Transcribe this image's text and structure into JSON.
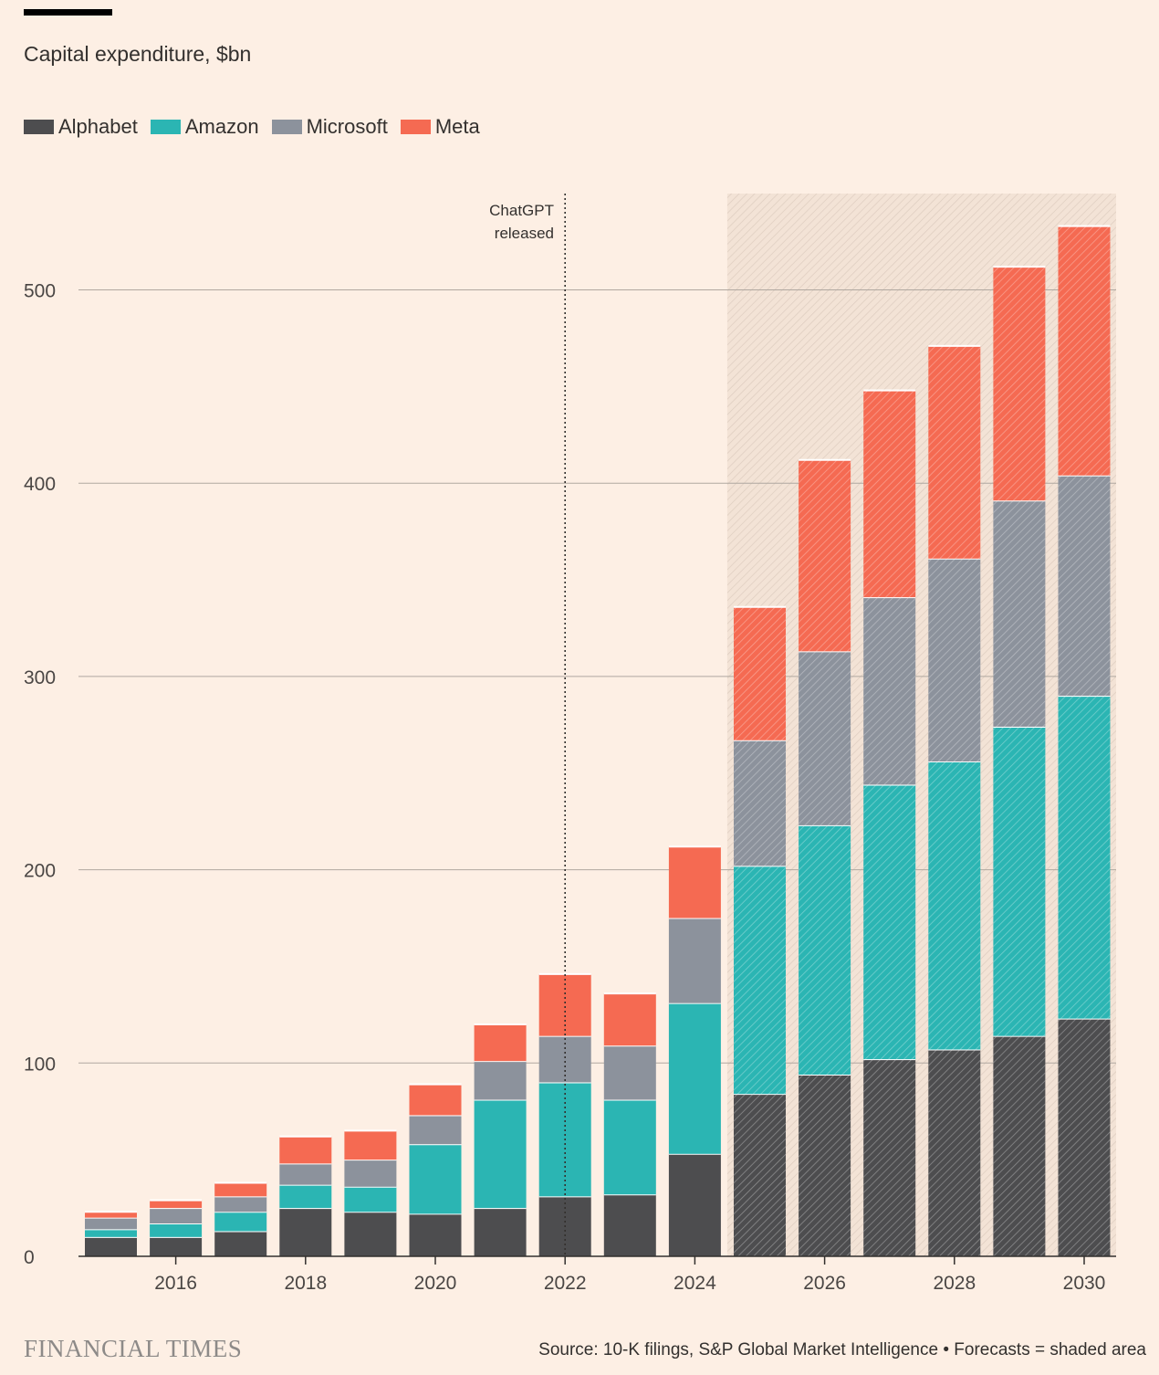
{
  "subtitle": "Capital expenditure, $bn",
  "brand": "FINANCIAL TIMES",
  "source": "Source: 10-K filings, S&P Global Market Intelligence • Forecasts = shaded area",
  "annotation": {
    "line1": "ChatGPT",
    "line2": "released"
  },
  "legend": [
    {
      "name": "Alphabet",
      "color": "#4d4d4f"
    },
    {
      "name": "Amazon",
      "color": "#2bb5b3"
    },
    {
      "name": "Microsoft",
      "color": "#8c929c"
    },
    {
      "name": "Meta",
      "color": "#f56a52"
    }
  ],
  "chart_data": {
    "type": "bar",
    "stacked": true,
    "title": "",
    "ylabel": "",
    "ylim": [
      0,
      550
    ],
    "yticks": [
      0,
      100,
      200,
      300,
      400,
      500
    ],
    "xtick_labels": [
      "2016",
      "2018",
      "2020",
      "2022",
      "2024",
      "2026",
      "2028",
      "2030"
    ],
    "categories": [
      "2015",
      "2016",
      "2017",
      "2018",
      "2019",
      "2020",
      "2021",
      "2022",
      "2023",
      "2024",
      "2025",
      "2026",
      "2027",
      "2028",
      "2029",
      "2030"
    ],
    "forecast_from": "2025",
    "annotation_at": "2022",
    "series": [
      {
        "name": "Alphabet",
        "color": "#4d4d4f",
        "values": [
          10,
          10,
          13,
          25,
          23,
          22,
          25,
          31,
          32,
          53,
          84,
          94,
          102,
          107,
          114,
          123
        ]
      },
      {
        "name": "Amazon",
        "color": "#2bb5b3",
        "values": [
          4,
          7,
          10,
          12,
          13,
          36,
          56,
          59,
          49,
          78,
          118,
          129,
          142,
          149,
          160,
          167
        ]
      },
      {
        "name": "Microsoft",
        "color": "#8c929c",
        "values": [
          6,
          8,
          8,
          11,
          14,
          15,
          20,
          24,
          28,
          44,
          65,
          90,
          97,
          105,
          117,
          114
        ]
      },
      {
        "name": "Meta",
        "color": "#f56a52",
        "values": [
          3,
          4,
          7,
          14,
          15,
          16,
          19,
          32,
          27,
          37,
          69,
          99,
          107,
          110,
          121,
          129
        ]
      }
    ]
  }
}
